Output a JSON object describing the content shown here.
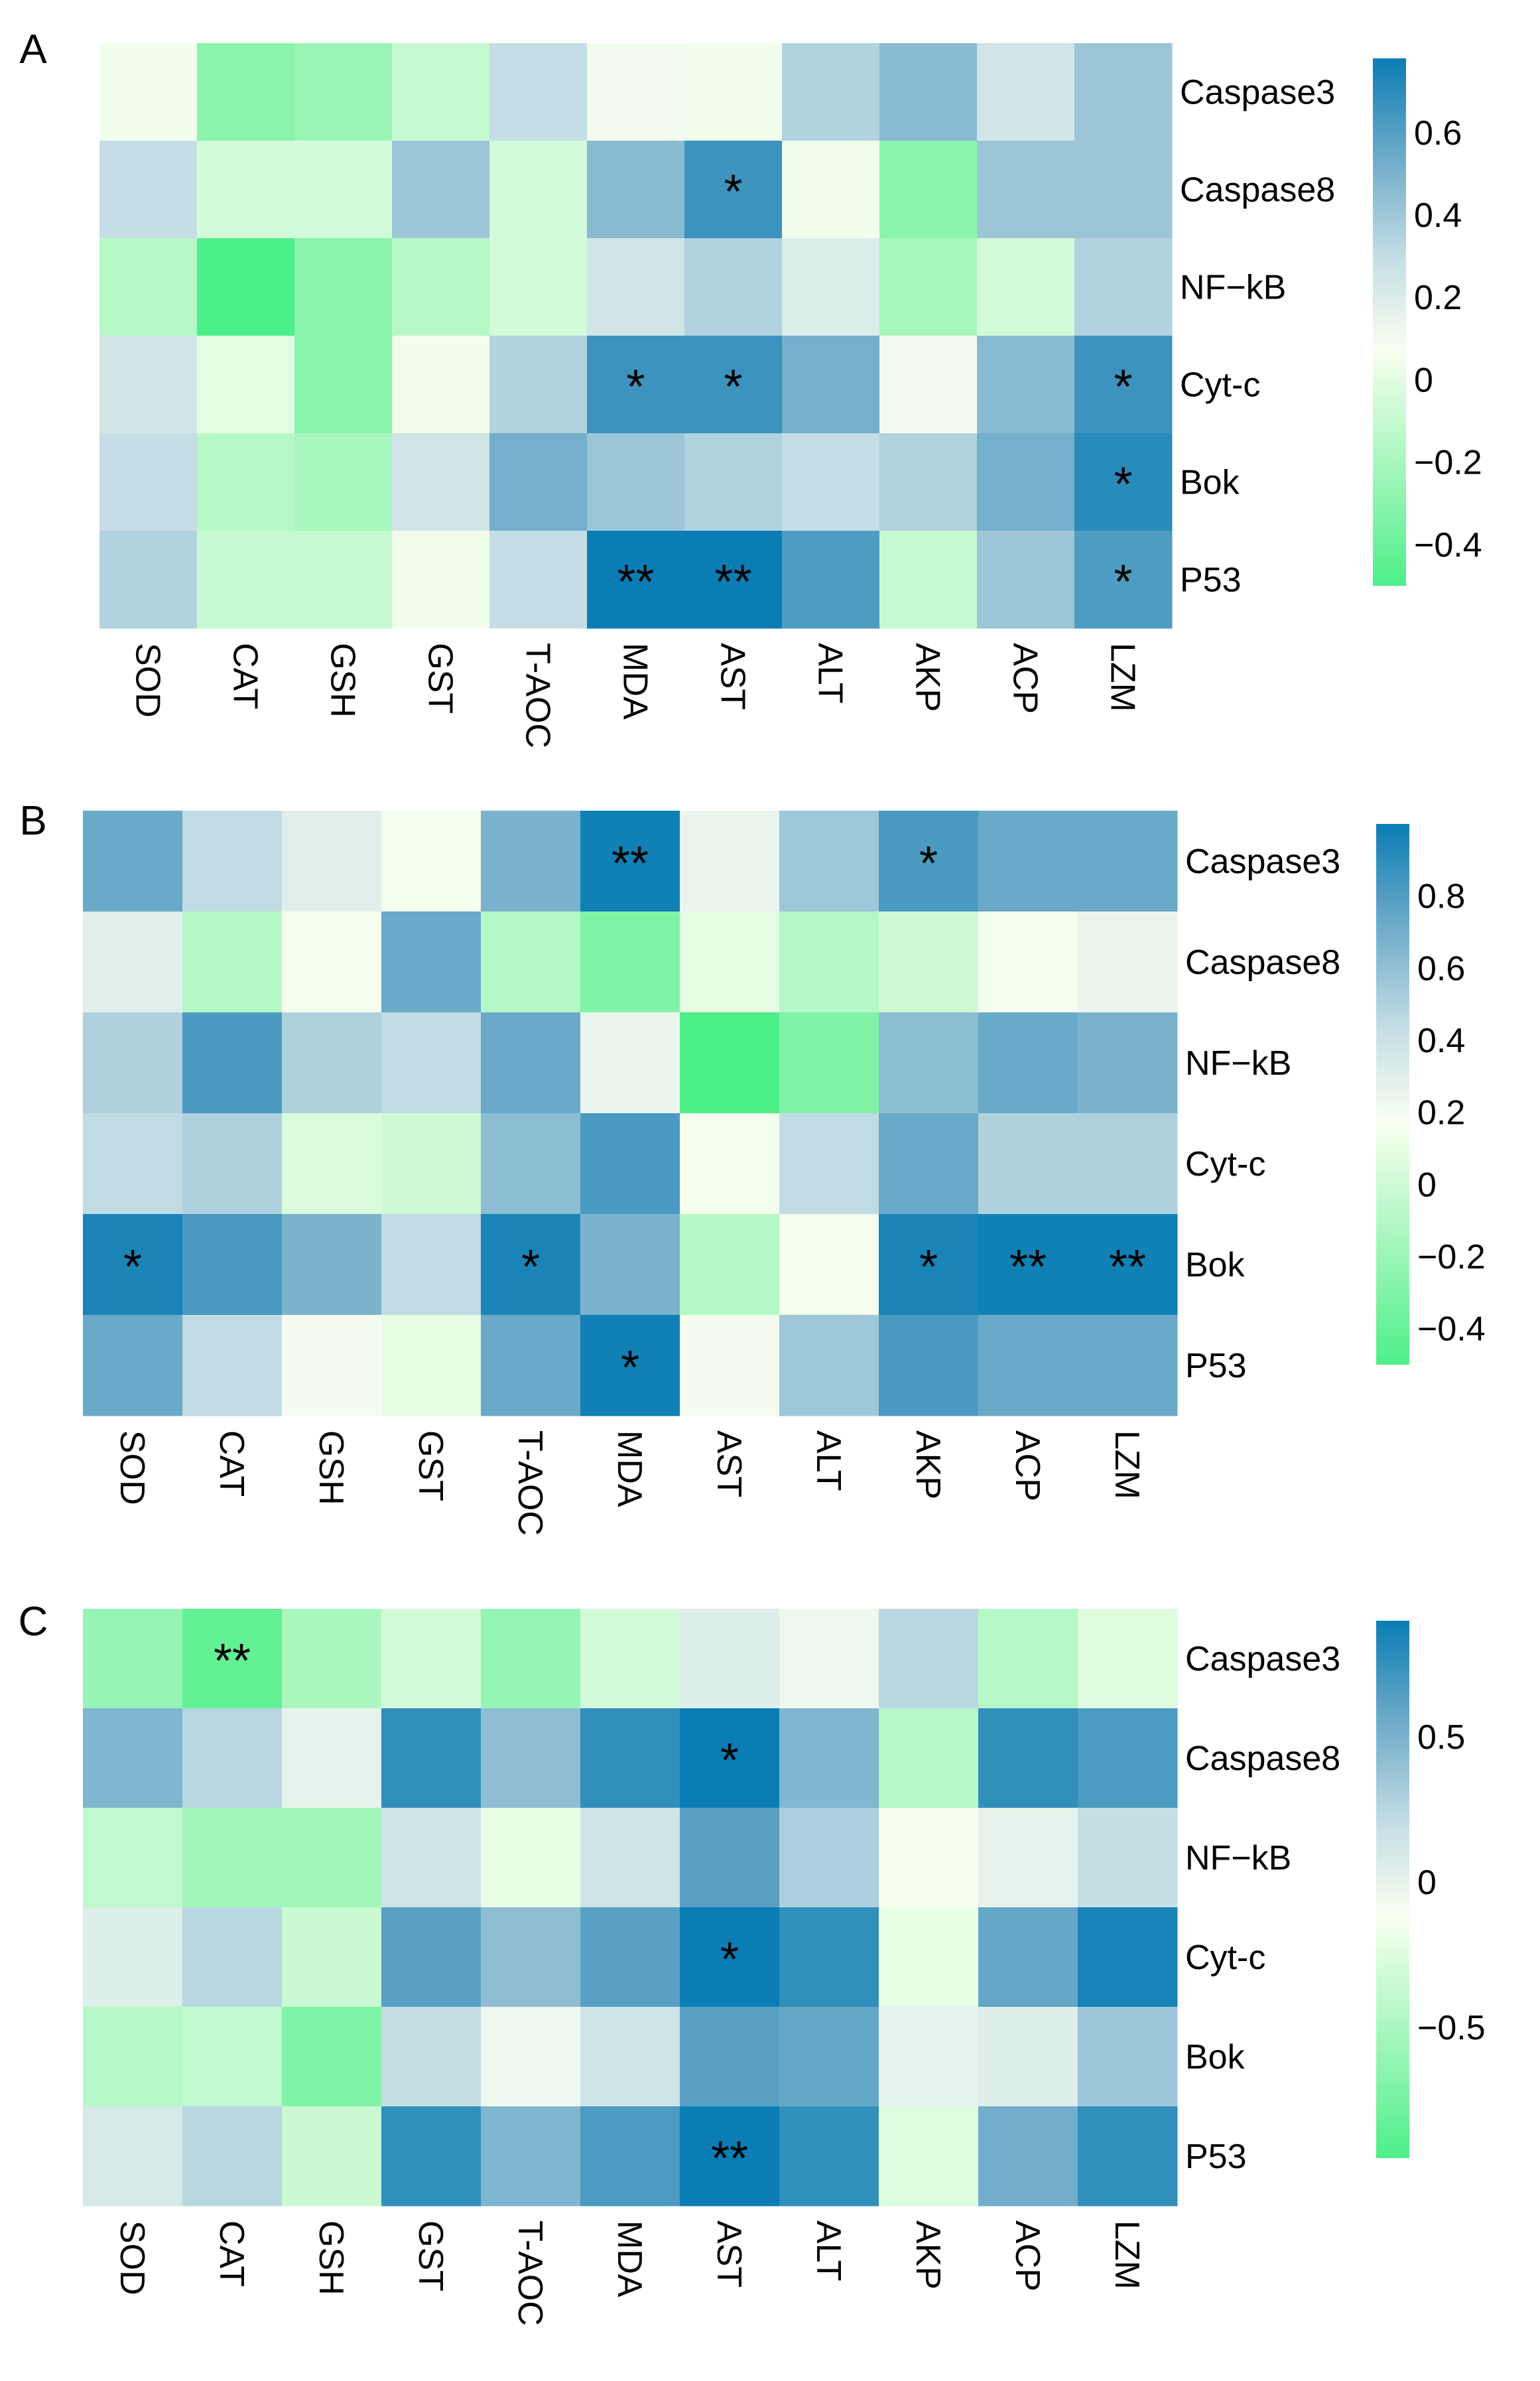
{
  "chart_data": [
    {
      "type": "heatmap",
      "panel": "A",
      "columns": [
        "SOD",
        "CAT",
        "GSH",
        "GST",
        "T-AOC",
        "MDA",
        "AST",
        "ALT",
        "AKP",
        "ACP",
        "LZM"
      ],
      "rows": [
        "Caspase3",
        "Caspase8",
        "NF−kB",
        "Cyt-c",
        "Bok",
        "P53"
      ],
      "values": [
        [
          0.05,
          -0.3,
          -0.25,
          -0.1,
          0.3,
          0.1,
          0.05,
          0.35,
          0.45,
          0.25,
          0.4
        ],
        [
          0.3,
          -0.05,
          -0.05,
          0.4,
          -0.05,
          0.45,
          0.65,
          0.05,
          -0.3,
          0.4,
          0.4
        ],
        [
          -0.15,
          -0.5,
          -0.3,
          -0.15,
          -0.05,
          0.25,
          0.35,
          0.2,
          -0.2,
          -0.05,
          0.35
        ],
        [
          0.25,
          0.0,
          -0.3,
          0.05,
          0.35,
          0.65,
          0.65,
          0.5,
          0.1,
          0.45,
          0.65
        ],
        [
          0.3,
          -0.15,
          -0.2,
          0.25,
          0.5,
          0.4,
          0.35,
          0.3,
          0.35,
          0.5,
          0.7
        ],
        [
          0.35,
          -0.1,
          -0.1,
          0.05,
          0.3,
          0.78,
          0.78,
          0.6,
          -0.1,
          0.4,
          0.6
        ]
      ],
      "significance": [
        [
          "",
          "",
          "",
          "",
          "",
          "",
          "",
          "",
          "",
          "",
          ""
        ],
        [
          "",
          "",
          "",
          "",
          "",
          "",
          "*",
          "",
          "",
          "",
          ""
        ],
        [
          "",
          "",
          "",
          "",
          "",
          "",
          "",
          "",
          "",
          "",
          ""
        ],
        [
          "",
          "",
          "",
          "",
          "",
          "*",
          "*",
          "",
          "",
          "",
          "*"
        ],
        [
          "",
          "",
          "",
          "",
          "",
          "",
          "",
          "",
          "",
          "",
          "*"
        ],
        [
          "",
          "",
          "",
          "",
          "",
          "**",
          "**",
          "",
          "",
          "",
          "*"
        ]
      ],
      "colorbar": {
        "min": -0.5,
        "max": 0.78,
        "ticks": [
          0.6,
          0.4,
          0.2,
          0,
          -0.2,
          -0.4
        ],
        "tick_labels": [
          "0.6",
          "0.4",
          "0.2",
          "0",
          "−0.2",
          "−0.4"
        ]
      }
    },
    {
      "type": "heatmap",
      "panel": "B",
      "columns": [
        "SOD",
        "CAT",
        "GSH",
        "GST",
        "T-AOC",
        "MDA",
        "AST",
        "ALT",
        "AKP",
        "ACP",
        "LZM"
      ],
      "rows": [
        "Caspase3",
        "Caspase8",
        "NF−kB",
        "Cyt-c",
        "Bok",
        "P53"
      ],
      "values": [
        [
          0.7,
          0.45,
          0.3,
          0.15,
          0.65,
          0.98,
          0.25,
          0.55,
          0.8,
          0.7,
          0.7
        ],
        [
          0.3,
          -0.1,
          0.15,
          0.7,
          -0.1,
          -0.3,
          0.1,
          -0.1,
          0.0,
          0.15,
          0.25
        ],
        [
          0.5,
          0.8,
          0.5,
          0.45,
          0.7,
          0.25,
          -0.5,
          -0.3,
          0.6,
          0.7,
          0.65
        ],
        [
          0.45,
          0.5,
          0.05,
          0.0,
          0.6,
          0.8,
          0.15,
          0.45,
          0.7,
          0.5,
          0.5
        ],
        [
          0.95,
          0.8,
          0.65,
          0.45,
          0.95,
          0.65,
          -0.1,
          0.15,
          0.95,
          0.98,
          0.98
        ],
        [
          0.7,
          0.45,
          0.2,
          0.1,
          0.7,
          0.98,
          0.2,
          0.55,
          0.8,
          0.7,
          0.7
        ]
      ],
      "significance": [
        [
          "",
          "",
          "",
          "",
          "",
          "**",
          "",
          "",
          "*",
          "",
          ""
        ],
        [
          "",
          "",
          "",
          "",
          "",
          "",
          "",
          "",
          "",
          "",
          ""
        ],
        [
          "",
          "",
          "",
          "",
          "",
          "",
          "",
          "",
          "",
          "",
          ""
        ],
        [
          "",
          "",
          "",
          "",
          "",
          "",
          "",
          "",
          "",
          "",
          ""
        ],
        [
          "*",
          "",
          "",
          "",
          "*",
          "",
          "",
          "",
          "*",
          "**",
          "**"
        ],
        [
          "",
          "",
          "",
          "",
          "",
          "*",
          "",
          "",
          "",
          "",
          ""
        ]
      ],
      "colorbar": {
        "min": -0.5,
        "max": 1.0,
        "ticks": [
          0.8,
          0.6,
          0.4,
          0.2,
          0,
          -0.2,
          -0.4
        ],
        "tick_labels": [
          "0.8",
          "0.6",
          "0.4",
          "0.2",
          "0",
          "−0.2",
          "−0.4"
        ]
      }
    },
    {
      "type": "heatmap",
      "panel": "C",
      "columns": [
        "SOD",
        "CAT",
        "GSH",
        "GST",
        "T-AOC",
        "MDA",
        "AST",
        "ALT",
        "AKP",
        "ACP",
        "LZM"
      ],
      "rows": [
        "Caspase3",
        "Caspase8",
        "NF−kB",
        "Cyt-c",
        "Bok",
        "P53"
      ],
      "values": [
        [
          -0.6,
          -0.85,
          -0.5,
          -0.3,
          -0.6,
          -0.3,
          0.05,
          -0.05,
          0.25,
          -0.45,
          -0.25
        ],
        [
          0.45,
          0.25,
          0.0,
          0.75,
          0.4,
          0.75,
          0.9,
          0.45,
          -0.45,
          0.75,
          0.65
        ],
        [
          -0.4,
          -0.55,
          -0.55,
          0.15,
          -0.2,
          0.15,
          0.6,
          0.3,
          -0.1,
          0.0,
          0.2
        ],
        [
          0.05,
          0.25,
          -0.35,
          0.6,
          0.4,
          0.6,
          0.9,
          0.75,
          -0.2,
          0.55,
          0.85
        ],
        [
          -0.45,
          -0.4,
          -0.7,
          0.2,
          -0.05,
          0.15,
          0.6,
          0.55,
          0.0,
          0.05,
          0.35
        ],
        [
          0.1,
          0.25,
          -0.35,
          0.75,
          0.45,
          0.65,
          0.9,
          0.75,
          -0.25,
          0.5,
          0.75
        ]
      ],
      "significance": [
        [
          "",
          "**",
          "",
          "",
          "",
          "",
          "",
          "",
          "",
          "",
          ""
        ],
        [
          "",
          "",
          "",
          "",
          "",
          "",
          "*",
          "",
          "",
          "",
          ""
        ],
        [
          "",
          "",
          "",
          "",
          "",
          "",
          "",
          "",
          "",
          "",
          ""
        ],
        [
          "",
          "",
          "",
          "",
          "",
          "",
          "*",
          "",
          "",
          "",
          ""
        ],
        [
          "",
          "",
          "",
          "",
          "",
          "",
          "",
          "",
          "",
          "",
          ""
        ],
        [
          "",
          "",
          "",
          "",
          "",
          "",
          "**",
          "",
          "",
          "",
          ""
        ]
      ],
      "colorbar": {
        "min": -0.95,
        "max": 0.9,
        "ticks": [
          0.5,
          0,
          -0.5
        ],
        "tick_labels": [
          "0.5",
          "0",
          "−0.5"
        ]
      }
    }
  ]
}
